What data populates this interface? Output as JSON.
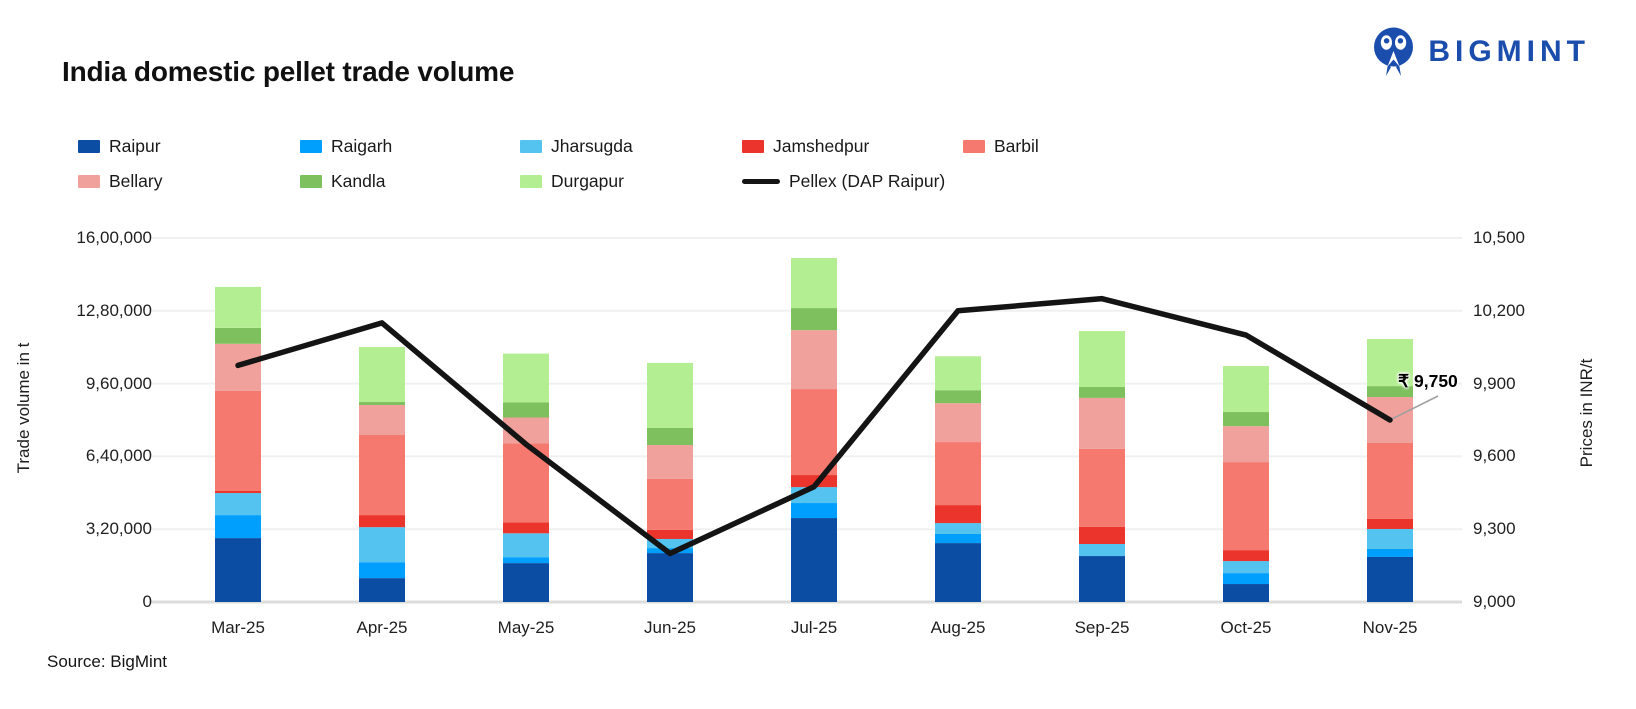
{
  "header": {
    "title": "India domestic pellet trade volume",
    "brand": "BIGMINT",
    "brand_color": "#1b4dad"
  },
  "footer": {
    "source": "Source: BigMint"
  },
  "chart_data": {
    "type": "stacked-bar+line",
    "title": "India domestic pellet trade volume",
    "legend_position": "top",
    "grid": true,
    "categories": [
      "Mar-25",
      "Apr-25",
      "May-25",
      "Jun-25",
      "Jul-25",
      "Aug-25",
      "Sep-25",
      "Oct-25",
      "Nov-25"
    ],
    "bar_series": [
      {
        "name": "Raipur",
        "color": "#0b4da2",
        "values": [
          281000,
          105000,
          171000,
          215000,
          369000,
          259000,
          202000,
          79000,
          198000
        ]
      },
      {
        "name": "Raigarh",
        "color": "#009ffd",
        "values": [
          101000,
          70000,
          26000,
          22000,
          66000,
          40000,
          0,
          48000,
          35000
        ]
      },
      {
        "name": "Jharsugda",
        "color": "#55c3ef",
        "values": [
          97000,
          154000,
          105000,
          40000,
          70000,
          48000,
          53000,
          53000,
          88000
        ]
      },
      {
        "name": "Jamshedpur",
        "color": "#ea342c",
        "values": [
          9000,
          53000,
          48000,
          40000,
          53000,
          79000,
          75000,
          48000,
          44000
        ]
      },
      {
        "name": "Barbil",
        "color": "#f5796f",
        "values": [
          440000,
          352000,
          347000,
          224000,
          378000,
          277000,
          343000,
          387000,
          334000
        ]
      },
      {
        "name": "Bellary",
        "color": "#f0a19b",
        "values": [
          207000,
          132000,
          114000,
          149000,
          259000,
          171000,
          224000,
          158000,
          202000
        ]
      },
      {
        "name": "Kandla",
        "color": "#7fc05e",
        "values": [
          70000,
          13000,
          66000,
          75000,
          97000,
          57000,
          48000,
          62000,
          48000
        ]
      },
      {
        "name": "Durgapur",
        "color": "#b4ee92",
        "values": [
          180000,
          242000,
          215000,
          286000,
          220000,
          149000,
          246000,
          202000,
          207000
        ]
      }
    ],
    "line_series": {
      "name": "Pellex (DAP Raipur)",
      "color": "#141414",
      "values": [
        9975,
        10150,
        9650,
        9200,
        9475,
        10200,
        10250,
        10100,
        9750
      ]
    },
    "left_axis": {
      "label": "Trade volume in t",
      "min": 0,
      "max": 1600000,
      "ticks": [
        "0",
        "3,20,000",
        "6,40,000",
        "9,60,000",
        "12,80,000",
        "16,00,000"
      ]
    },
    "right_axis": {
      "label": "Prices in INR/t",
      "min": 9000,
      "max": 10500,
      "ticks": [
        "9,000",
        "9,300",
        "9,600",
        "9,900",
        "10,200",
        "10,500"
      ]
    },
    "annotation": {
      "text": "₹ 9,750",
      "category": "Nov-25",
      "value": 9750
    }
  }
}
